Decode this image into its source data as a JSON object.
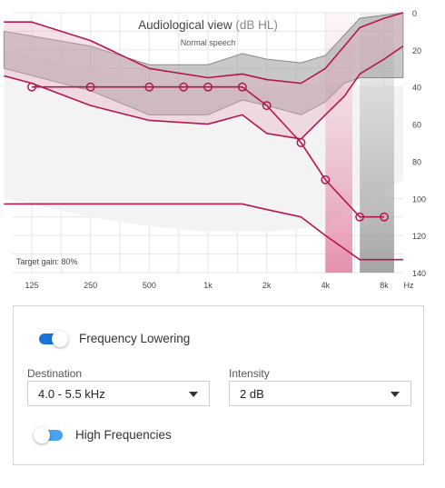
{
  "chart": {
    "title": "Audiological view",
    "unit": "(dB HL)",
    "subtitle": "Normal speech",
    "target_gain": "Target gain: 80%",
    "x_unit": "Hz",
    "colors": {
      "curve": "#b5174b",
      "shade": "#8a8a8a",
      "highlight": "#e8a9bd"
    }
  },
  "chart_data": {
    "type": "line",
    "title": "Audiological view (dB HL)",
    "subtitle": "Normal speech",
    "xlabel": "Hz",
    "ylabel": "dB HL",
    "x_ticks": [
      "125",
      "250",
      "500",
      "1k",
      "2k",
      "4k",
      "8k"
    ],
    "y_ticks": [
      0,
      20,
      40,
      60,
      80,
      100,
      120,
      140
    ],
    "x_scale": "log",
    "ylim": [
      0,
      140
    ],
    "y_inverted": true,
    "grid": true,
    "series": [
      {
        "kind": "line-markers",
        "x": [
          125,
          250,
          500,
          750,
          1000,
          1500,
          2000,
          3000,
          4000,
          6000,
          8000
        ],
        "y": [
          40,
          40,
          40,
          40,
          40,
          40,
          50,
          70,
          90,
          110,
          110
        ]
      },
      {
        "kind": "line",
        "x": [
          90,
          125,
          250,
          500,
          1000,
          1500,
          2000,
          3000,
          4000,
          6000,
          8000,
          10000
        ],
        "y": [
          103,
          103,
          103,
          103,
          103,
          103,
          106,
          110,
          120,
          133,
          133,
          133
        ]
      },
      {
        "kind": "band-upper",
        "x": [
          90,
          125,
          250,
          500,
          1000,
          1500,
          2000,
          3000,
          4000,
          5000,
          6000,
          8000,
          10000
        ],
        "y": [
          5,
          5,
          15,
          30,
          35,
          33,
          36,
          38,
          30,
          18,
          8,
          3,
          0
        ]
      },
      {
        "kind": "band-lower",
        "x": [
          90,
          125,
          250,
          500,
          1000,
          1500,
          2000,
          3000,
          4000,
          5000,
          6000,
          8000,
          10000
        ],
        "y": [
          34,
          38,
          50,
          58,
          60,
          55,
          65,
          68,
          55,
          45,
          33,
          25,
          18
        ]
      },
      {
        "kind": "gray-upper",
        "x": [
          90,
          250,
          500,
          1000,
          1500,
          2000,
          3000,
          4000,
          5000,
          6000,
          10000
        ],
        "y": [
          10,
          18,
          28,
          28,
          22,
          25,
          27,
          23,
          12,
          3,
          0
        ]
      },
      {
        "kind": "gray-lower",
        "x": [
          90,
          250,
          500,
          1000,
          1500,
          2000,
          3000,
          4000,
          5000,
          6000,
          10000
        ],
        "y": [
          30,
          42,
          55,
          55,
          47,
          50,
          55,
          48,
          38,
          35,
          35
        ]
      }
    ],
    "highlight_bands": [
      {
        "from": 4000,
        "to": 5500,
        "color": "#e8a9bd"
      },
      {
        "from": 6000,
        "to": 9000,
        "color": "#a8a8a8"
      }
    ]
  },
  "settings": {
    "frequency_lowering": {
      "label": "Frequency Lowering",
      "on": true
    },
    "destination": {
      "label": "Destination",
      "value": "4.0 - 5.5 kHz"
    },
    "intensity": {
      "label": "Intensity",
      "value": "2 dB"
    },
    "high_frequencies": {
      "label": "High Frequencies",
      "on": false
    }
  }
}
